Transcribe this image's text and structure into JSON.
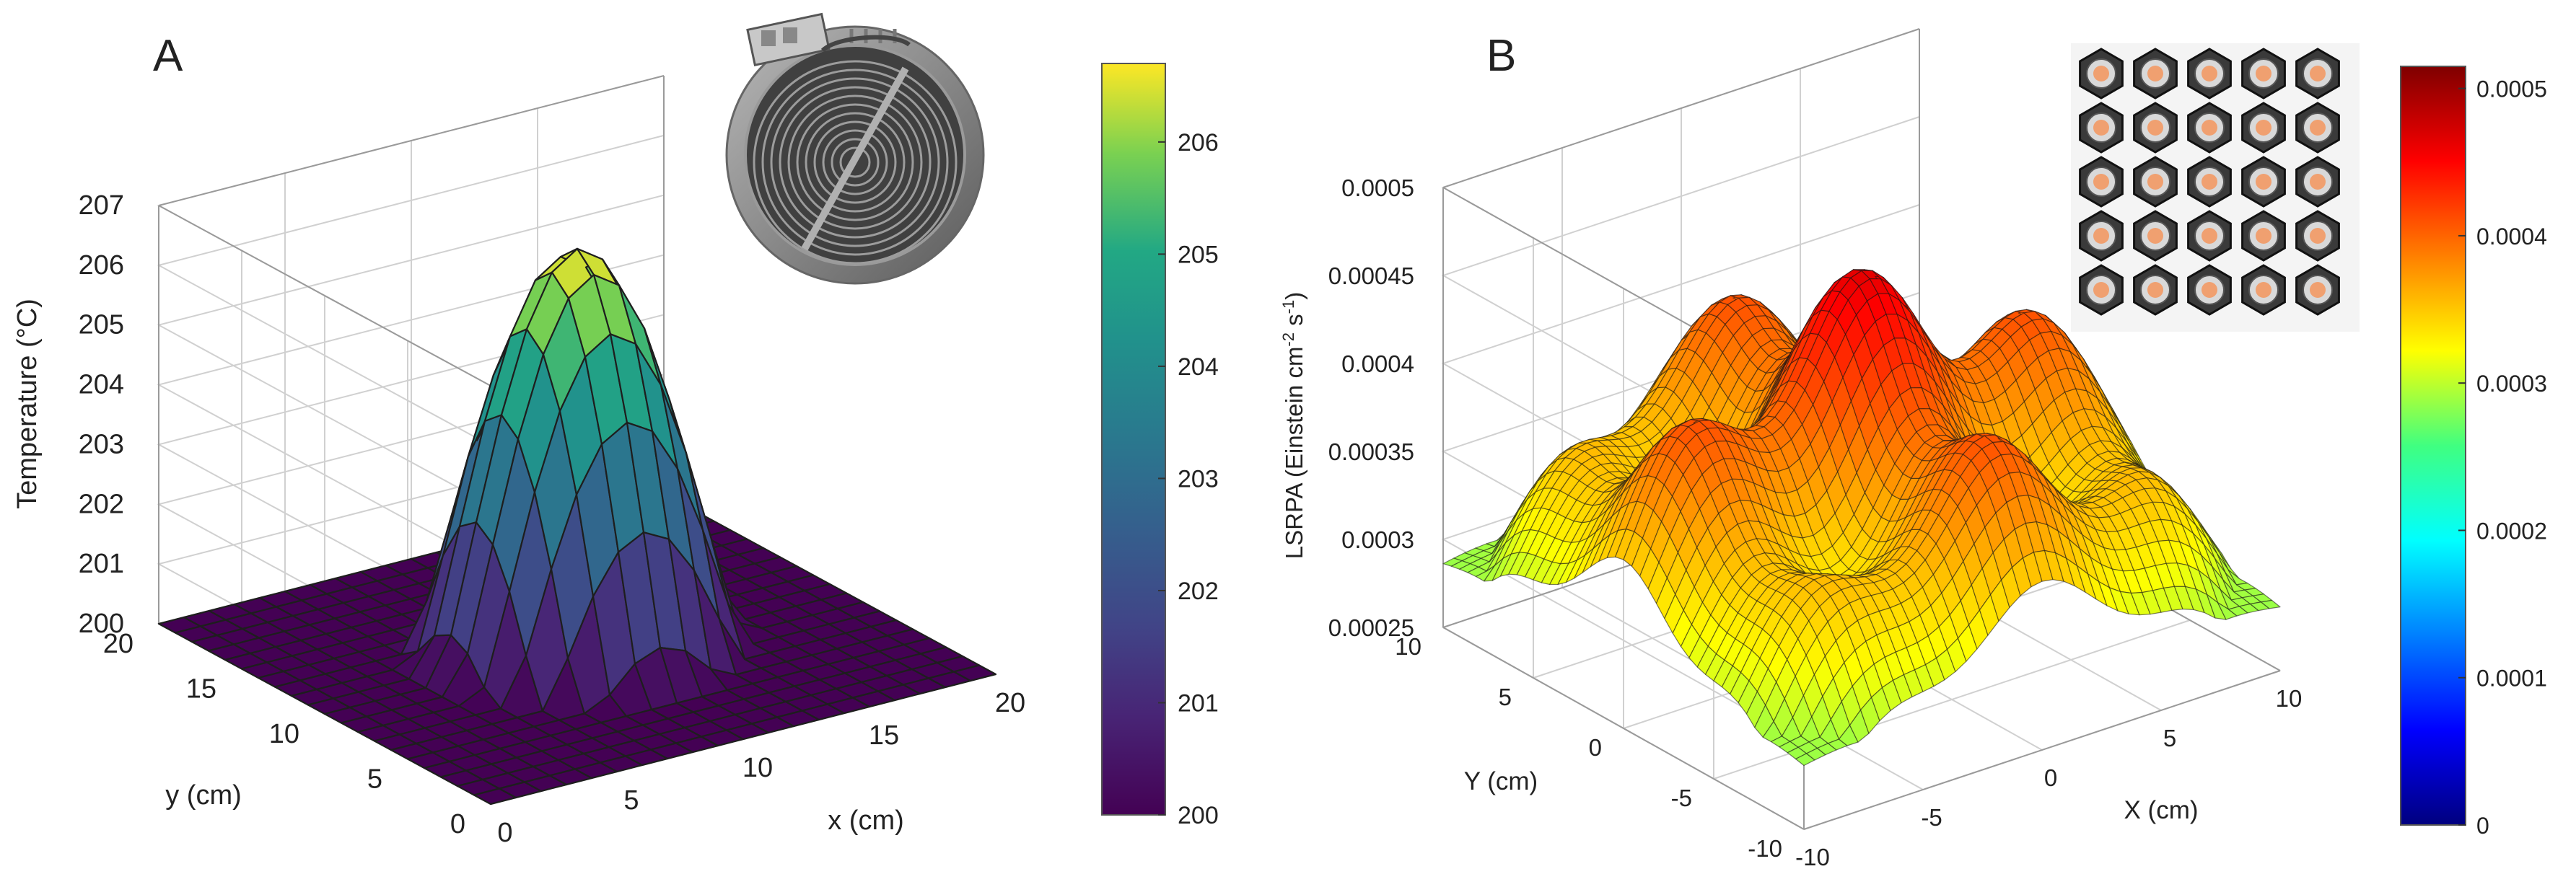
{
  "figure": {
    "panel_labels": [
      "A",
      "B"
    ]
  },
  "chart_data": [
    {
      "type": "surface3d",
      "panel": "A",
      "title": "",
      "description_of_surface": "single smooth dome centred near (10,10) cm",
      "xlabel": "x (cm)",
      "ylabel": "y (cm)",
      "zlabel": "Temperature (°C)",
      "xlim": [
        0,
        20
      ],
      "ylim": [
        0,
        20
      ],
      "zlim": [
        200,
        207
      ],
      "xticks": [
        "0",
        "5",
        "10",
        "15",
        "20"
      ],
      "yticks": [
        "0",
        "5",
        "10",
        "15",
        "20"
      ],
      "zticks": [
        "200",
        "201",
        "202",
        "203",
        "204",
        "205",
        "206",
        "207"
      ],
      "peak": {
        "x": 10,
        "y": 10,
        "z": 206.7
      },
      "base": 200,
      "colormap": "viridis",
      "colorbar": {
        "min": 200,
        "max": 206.7,
        "ticks": [
          "200",
          "201",
          "202",
          "203",
          "204",
          "205",
          "206"
        ]
      },
      "inset": "heating-element-icon"
    },
    {
      "type": "surface3d",
      "panel": "B",
      "title": "",
      "description_of_surface": "rippled plateau with periodic peaks from a 5x5 LED array",
      "xlabel": "X (cm)",
      "ylabel": "Y (cm)",
      "zlabel": "LSRPA (Einstein cm",
      "zlabel_sup1": "-2",
      "zlabel_mid": " s",
      "zlabel_sup2": "-1",
      "zlabel_end": ")",
      "xlim": [
        -10,
        10
      ],
      "ylim": [
        -10,
        10
      ],
      "zlim": [
        0.00025,
        0.0005
      ],
      "xticks": [
        "-10",
        "-5",
        "0",
        "5",
        "10"
      ],
      "yticks": [
        "-10",
        "-5",
        "0",
        "5",
        "10"
      ],
      "zticks": [
        "0.00025",
        "0.0003",
        "0.00035",
        "0.0004",
        "0.00045",
        "0.0005"
      ],
      "peak_value": 0.000465,
      "minimum_value": 0.00028,
      "colormap": "jet",
      "colorbar": {
        "min": 0,
        "max": 0.000515,
        "ticks": [
          "0",
          "0.0001",
          "0.0002",
          "0.0003",
          "0.0004",
          "0.0005"
        ]
      },
      "inset": "led-array-icon"
    }
  ]
}
